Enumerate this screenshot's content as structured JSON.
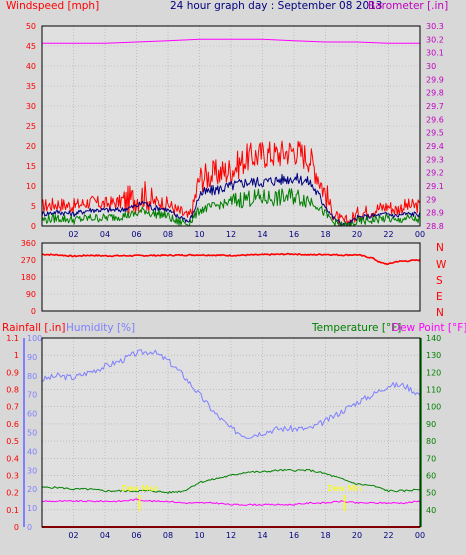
{
  "title": "24 hour graph day : September 08 2013",
  "colors": {
    "background": "#d8d8d8",
    "plot_bg": "#e0e0e0",
    "grid": "#a8a8a8",
    "wind_gust": "#ff0000",
    "wind_avg": "#00007f",
    "wind_low": "#007f00",
    "barometer": "#ff00ff",
    "direction": "#ff0000",
    "humidity": "#7f7fff",
    "temperature": "#007f00",
    "dewpoint": "#ff00ff",
    "rainfall": "#ff0000",
    "hum_axis": "#7f7fff",
    "baro_axis": "#c000c0",
    "temp_axis": "#007f00",
    "annotation": "#ffff00"
  },
  "panels": {
    "wind": {
      "left_title": "Windspeed [mph]",
      "right_title": "Barometer [.in]"
    },
    "direction": {
      "compass_labels": [
        "N",
        "W",
        "S",
        "E",
        "N"
      ]
    },
    "weather": {
      "left_title": "Rainfall [.in]",
      "humidity_title": "Humidity [%]",
      "temp_title": "Temperature [°F]",
      "dew_title": "Dew Point [°F]"
    }
  },
  "chart_data": [
    {
      "type": "line",
      "title": "24 hour graph day : September 08 2013",
      "x_tick_labels": [
        "02",
        "04",
        "06",
        "08",
        "10",
        "12",
        "14",
        "16",
        "18",
        "20",
        "22",
        "00"
      ],
      "xlim": [
        0,
        24
      ],
      "grid": true,
      "y_left": {
        "label": "Windspeed [mph]",
        "lim": [
          0,
          50
        ],
        "ticks": [
          "0",
          "5",
          "10",
          "15",
          "20",
          "25",
          "30",
          "35",
          "40",
          "45",
          "50"
        ]
      },
      "y_right": {
        "label": "Barometer [.in]",
        "lim": [
          28.8,
          30.3
        ],
        "ticks": [
          "28.8",
          "28.9",
          "29",
          "29.1",
          "29.2",
          "29.3",
          "29.4",
          "29.5",
          "29.6",
          "29.7",
          "29.8",
          "29.9",
          "30",
          "30.1",
          "30.2",
          "30.3"
        ]
      },
      "series": [
        {
          "name": "Windspeed gust",
          "x": [
            0,
            1,
            2,
            3,
            4,
            5,
            6,
            6.5,
            7,
            7.5,
            8,
            8.5,
            9,
            9.3,
            9.6,
            10,
            11,
            12,
            13,
            14,
            15,
            16,
            17,
            17.5,
            18,
            18.5,
            19,
            19.5,
            20,
            21,
            22,
            22.5,
            23,
            24
          ],
          "y": [
            5,
            5.5,
            5,
            6,
            5.5,
            6,
            7,
            8,
            6,
            6,
            5.5,
            4,
            3,
            2,
            5,
            12,
            13,
            14,
            17,
            18,
            18,
            19,
            17,
            13,
            8,
            3,
            1,
            1,
            3,
            4,
            5,
            4,
            5,
            5
          ]
        },
        {
          "name": "Windspeed average",
          "x": [
            0,
            1,
            2,
            3,
            4,
            5,
            6,
            6.5,
            7,
            7.5,
            8,
            8.5,
            9,
            9.3,
            9.6,
            10,
            11,
            12,
            13,
            14,
            15,
            16,
            17,
            17.5,
            18,
            18.5,
            19,
            19.5,
            20,
            21,
            22,
            22.5,
            23,
            24
          ],
          "y": [
            3,
            3.5,
            3,
            4,
            4,
            4,
            5,
            6,
            4.5,
            4.5,
            4,
            2.5,
            2,
            1,
            3,
            8,
            9,
            10,
            11,
            11,
            11.5,
            12,
            11,
            8,
            5,
            2,
            0.5,
            0.5,
            2,
            2.5,
            3,
            2.5,
            3,
            3
          ]
        },
        {
          "name": "Windspeed low",
          "x": [
            0,
            1,
            2,
            3,
            4,
            5,
            6,
            6.5,
            7,
            7.5,
            8,
            8.5,
            9,
            9.3,
            9.6,
            10,
            11,
            12,
            13,
            14,
            15,
            16,
            17,
            17.5,
            18,
            18.5,
            19,
            19.5,
            20,
            21,
            22,
            22.5,
            23,
            24
          ],
          "y": [
            1.5,
            2,
            1.5,
            2,
            2,
            2.5,
            3,
            4,
            3,
            3,
            2.5,
            1,
            1,
            0.5,
            2,
            4,
            5,
            6,
            7,
            7,
            7,
            7.5,
            6.5,
            5,
            3,
            1,
            0,
            0,
            1,
            1.5,
            2,
            1,
            2,
            1.5
          ]
        },
        {
          "name": "Barometer",
          "axis": "right",
          "x": [
            0,
            2,
            4,
            6,
            8,
            10,
            12,
            14,
            16,
            18,
            20,
            22,
            24
          ],
          "y": [
            30.17,
            30.17,
            30.17,
            30.18,
            30.19,
            30.2,
            30.2,
            30.2,
            30.19,
            30.18,
            30.18,
            30.17,
            30.17
          ]
        }
      ]
    },
    {
      "type": "line",
      "x_tick_labels": [],
      "xlim": [
        0,
        24
      ],
      "grid": true,
      "y_left": {
        "lim": [
          0,
          360
        ],
        "ticks": [
          "0",
          "90",
          "180",
          "270",
          "360"
        ]
      },
      "y_right": {
        "ticks": [
          "N",
          "W",
          "S",
          "E",
          "N"
        ]
      },
      "series": [
        {
          "name": "Wind direction",
          "x": [
            0,
            1,
            2,
            3,
            4,
            6,
            8,
            10,
            12,
            14,
            16,
            17,
            18,
            19,
            20,
            21,
            21.5,
            22,
            22.5,
            23,
            24
          ],
          "y": [
            300,
            297,
            290,
            295,
            292,
            293,
            295,
            297,
            294,
            298,
            302,
            297,
            300,
            296,
            298,
            280,
            255,
            248,
            262,
            264,
            270
          ]
        }
      ]
    },
    {
      "type": "line",
      "x_tick_labels": [
        "02",
        "04",
        "06",
        "08",
        "10",
        "12",
        "14",
        "16",
        "18",
        "20",
        "22",
        "00"
      ],
      "xlim": [
        0,
        24
      ],
      "grid": true,
      "y_rain": {
        "label": "Rainfall [.in]",
        "lim": [
          0,
          1.1
        ],
        "ticks": [
          "0",
          "0.1",
          "0.2",
          "0.3",
          "0.4",
          "0.5",
          "0.6",
          "0.7",
          "0.8",
          "0.9",
          "1",
          "1.1"
        ]
      },
      "y_humidity": {
        "label": "Humidity [%]",
        "lim": [
          0,
          100
        ],
        "ticks": [
          "0",
          "10",
          "20",
          "30",
          "40",
          "50",
          "60",
          "70",
          "80",
          "90",
          "100"
        ]
      },
      "y_temp": {
        "label": "Temperature [°F]",
        "lim": [
          30,
          140
        ],
        "ticks": [
          "40",
          "50",
          "60",
          "70",
          "80",
          "90",
          "100",
          "110",
          "120",
          "130",
          "140"
        ]
      },
      "annotations": [
        {
          "text": "Dew Max",
          "x": 6.2,
          "y": 51
        },
        {
          "text": "Dew Min",
          "x": 19.2,
          "y": 51
        }
      ],
      "series": [
        {
          "name": "Humidity",
          "x": [
            0,
            1,
            2,
            3,
            4,
            5,
            6,
            7,
            8,
            9,
            10,
            11,
            12,
            13,
            14,
            15,
            16,
            17,
            18,
            19,
            20,
            21,
            22,
            23,
            24
          ],
          "y": [
            78,
            80,
            79,
            82,
            85,
            88,
            92,
            93,
            88,
            80,
            70,
            60,
            52,
            48,
            50,
            52,
            52,
            52,
            56,
            61,
            66,
            70,
            75,
            75,
            70
          ]
        },
        {
          "name": "Temperature",
          "x": [
            0,
            1,
            2,
            3,
            4,
            5,
            6,
            7,
            8,
            9,
            10,
            11,
            12,
            13,
            14,
            15,
            16,
            17,
            18,
            19,
            20,
            21,
            22,
            23,
            24
          ],
          "y": [
            53,
            53,
            52,
            52,
            51,
            51,
            51,
            51,
            50,
            51,
            56,
            58,
            60,
            62,
            62,
            63,
            63,
            63,
            61,
            58,
            55,
            54,
            51,
            51,
            52
          ]
        },
        {
          "name": "Dew Point",
          "x": [
            0,
            1,
            2,
            3,
            4,
            5,
            6,
            7,
            8,
            9,
            10,
            11,
            12,
            13,
            14,
            15,
            16,
            17,
            18,
            19,
            20,
            21,
            22,
            23,
            24
          ],
          "y": [
            45,
            45,
            45,
            45,
            45,
            45,
            46,
            45,
            45,
            44,
            44,
            44,
            43,
            43,
            43,
            43,
            43,
            44,
            44,
            45,
            44,
            44,
            44,
            44,
            45
          ]
        },
        {
          "name": "Rainfall",
          "x": [
            0,
            24
          ],
          "y": [
            0,
            0
          ]
        }
      ]
    }
  ]
}
